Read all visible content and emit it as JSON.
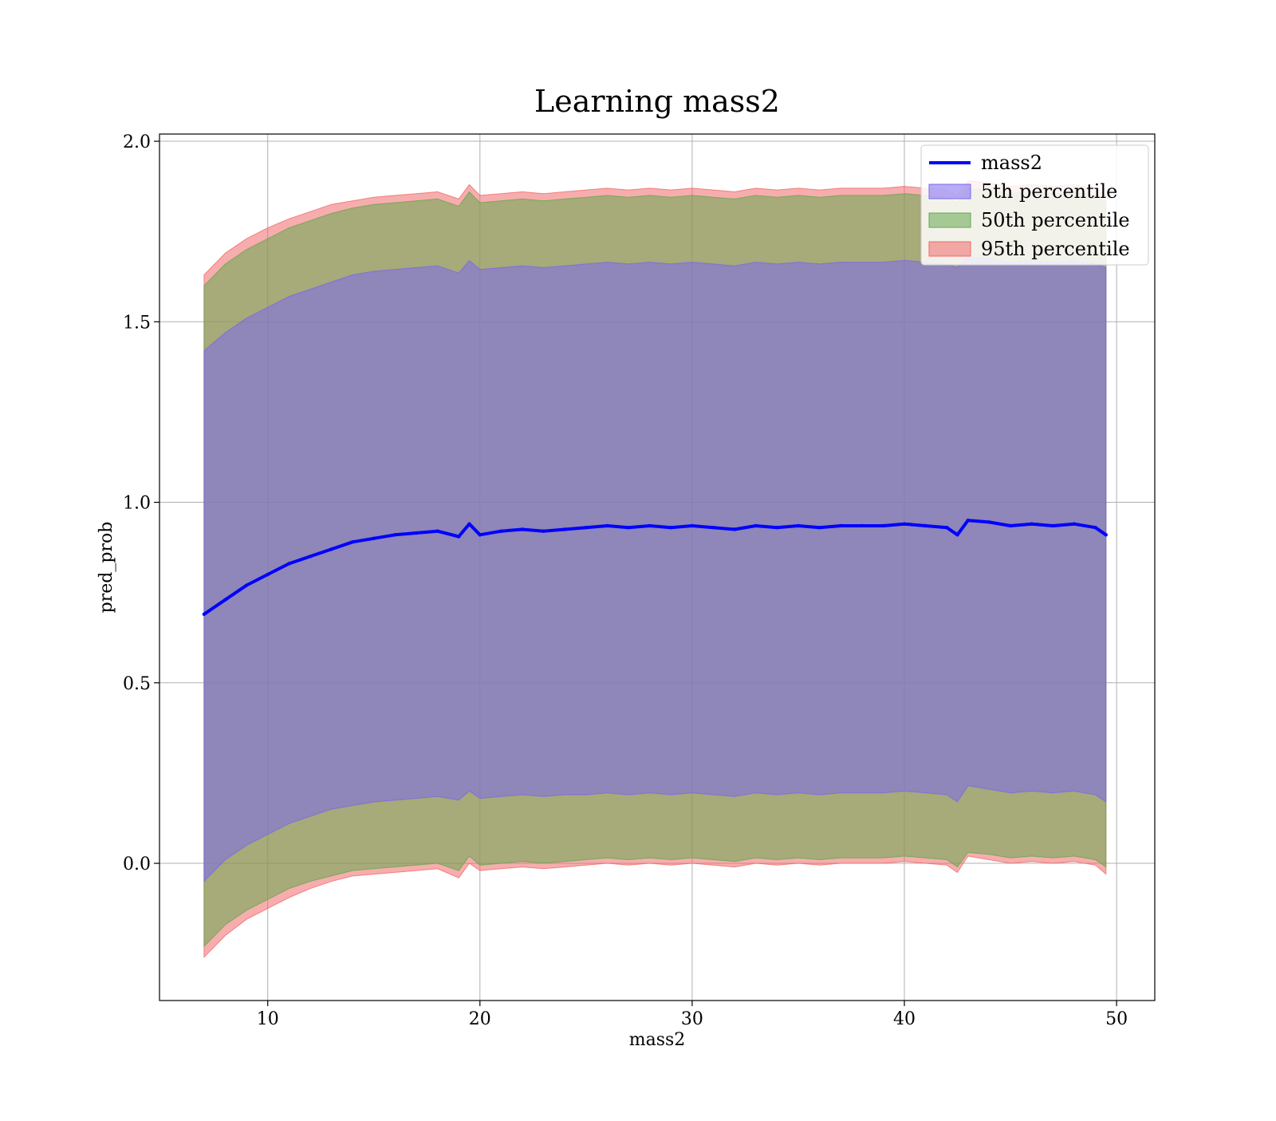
{
  "chart_data": {
    "type": "area",
    "title": "Learning mass2",
    "xlabel": "mass2",
    "ylabel": "pred_prob",
    "xlim": [
      4.9,
      51.8
    ],
    "ylim": [
      -0.38,
      2.02
    ],
    "xticks": [
      10,
      20,
      30,
      40,
      50
    ],
    "yticks": [
      0.0,
      0.5,
      1.0,
      1.5,
      2.0
    ],
    "xtick_labels": [
      "10",
      "20",
      "30",
      "40",
      "50"
    ],
    "ytick_labels": [
      "0.0",
      "0.5",
      "1.0",
      "1.5",
      "2.0"
    ],
    "grid": true,
    "legend_position": "top-right",
    "legend": [
      "mass2",
      "5th percentile",
      "50th percentile",
      "95th percentile"
    ],
    "colors": {
      "line": "#0000ff",
      "p5": "#7b68ee",
      "p50": "#66a84f",
      "p95": "#f06a6a",
      "grid": "#b0b0b0"
    },
    "x": [
      7.0,
      8.0,
      9.0,
      10.0,
      11.0,
      12.0,
      13.0,
      14.0,
      15.0,
      16.0,
      17.0,
      18.0,
      19.0,
      19.5,
      20.0,
      21.0,
      22.0,
      23.0,
      24.0,
      25.0,
      26.0,
      27.0,
      28.0,
      29.0,
      30.0,
      31.0,
      32.0,
      33.0,
      34.0,
      35.0,
      36.0,
      37.0,
      38.0,
      39.0,
      40.0,
      41.0,
      42.0,
      42.5,
      43.0,
      44.0,
      45.0,
      46.0,
      47.0,
      48.0,
      49.0,
      49.5
    ],
    "series": [
      {
        "name": "mass2",
        "kind": "line",
        "values": [
          0.69,
          0.73,
          0.77,
          0.8,
          0.83,
          0.85,
          0.87,
          0.89,
          0.9,
          0.91,
          0.915,
          0.92,
          0.905,
          0.94,
          0.91,
          0.92,
          0.925,
          0.92,
          0.925,
          0.93,
          0.935,
          0.93,
          0.935,
          0.93,
          0.935,
          0.93,
          0.925,
          0.935,
          0.93,
          0.935,
          0.93,
          0.935,
          0.935,
          0.935,
          0.94,
          0.935,
          0.93,
          0.91,
          0.95,
          0.945,
          0.935,
          0.94,
          0.935,
          0.94,
          0.93,
          0.91
        ]
      },
      {
        "name": "5th percentile",
        "kind": "band",
        "lower": [
          -0.05,
          0.01,
          0.05,
          0.08,
          0.11,
          0.13,
          0.15,
          0.16,
          0.17,
          0.175,
          0.18,
          0.185,
          0.175,
          0.2,
          0.18,
          0.185,
          0.19,
          0.185,
          0.19,
          0.19,
          0.195,
          0.19,
          0.195,
          0.19,
          0.195,
          0.19,
          0.185,
          0.195,
          0.19,
          0.195,
          0.19,
          0.195,
          0.195,
          0.195,
          0.2,
          0.195,
          0.19,
          0.17,
          0.215,
          0.205,
          0.195,
          0.2,
          0.195,
          0.2,
          0.19,
          0.17
        ],
        "upper": [
          1.42,
          1.47,
          1.51,
          1.54,
          1.57,
          1.59,
          1.61,
          1.63,
          1.64,
          1.645,
          1.65,
          1.655,
          1.635,
          1.67,
          1.645,
          1.65,
          1.655,
          1.65,
          1.655,
          1.66,
          1.665,
          1.66,
          1.665,
          1.66,
          1.665,
          1.66,
          1.655,
          1.665,
          1.66,
          1.665,
          1.66,
          1.665,
          1.665,
          1.665,
          1.67,
          1.665,
          1.66,
          1.65,
          1.68,
          1.675,
          1.665,
          1.67,
          1.665,
          1.67,
          1.66,
          1.65
        ]
      },
      {
        "name": "50th percentile",
        "kind": "band",
        "lower": [
          -0.23,
          -0.17,
          -0.13,
          -0.1,
          -0.07,
          -0.05,
          -0.035,
          -0.02,
          -0.015,
          -0.01,
          -0.005,
          0.0,
          -0.02,
          0.02,
          -0.005,
          0.0,
          0.005,
          0.0,
          0.005,
          0.01,
          0.015,
          0.01,
          0.015,
          0.01,
          0.015,
          0.01,
          0.005,
          0.015,
          0.01,
          0.015,
          0.01,
          0.015,
          0.015,
          0.015,
          0.02,
          0.015,
          0.01,
          -0.01,
          0.03,
          0.025,
          0.015,
          0.02,
          0.015,
          0.02,
          0.01,
          -0.01
        ],
        "upper": [
          1.6,
          1.66,
          1.7,
          1.73,
          1.76,
          1.78,
          1.8,
          1.815,
          1.825,
          1.83,
          1.835,
          1.84,
          1.82,
          1.86,
          1.83,
          1.835,
          1.84,
          1.835,
          1.84,
          1.845,
          1.85,
          1.845,
          1.85,
          1.845,
          1.85,
          1.845,
          1.84,
          1.85,
          1.845,
          1.85,
          1.845,
          1.85,
          1.85,
          1.85,
          1.855,
          1.85,
          1.845,
          1.83,
          1.87,
          1.865,
          1.855,
          1.86,
          1.855,
          1.86,
          1.85,
          1.83
        ]
      },
      {
        "name": "95th percentile",
        "kind": "band",
        "lower": [
          -0.26,
          -0.2,
          -0.155,
          -0.125,
          -0.095,
          -0.07,
          -0.05,
          -0.035,
          -0.03,
          -0.025,
          -0.02,
          -0.015,
          -0.04,
          0.0,
          -0.02,
          -0.015,
          -0.01,
          -0.015,
          -0.01,
          -0.005,
          0.0,
          -0.005,
          0.0,
          -0.005,
          0.0,
          -0.005,
          -0.01,
          0.0,
          -0.005,
          0.0,
          -0.005,
          0.0,
          0.0,
          0.0,
          0.005,
          0.0,
          -0.005,
          -0.025,
          0.02,
          0.01,
          0.0,
          0.005,
          0.0,
          0.005,
          -0.005,
          -0.03
        ],
        "upper": [
          1.63,
          1.69,
          1.73,
          1.76,
          1.785,
          1.805,
          1.825,
          1.835,
          1.845,
          1.85,
          1.855,
          1.86,
          1.84,
          1.88,
          1.85,
          1.855,
          1.86,
          1.855,
          1.86,
          1.865,
          1.87,
          1.865,
          1.87,
          1.865,
          1.87,
          1.865,
          1.86,
          1.87,
          1.865,
          1.87,
          1.865,
          1.87,
          1.87,
          1.87,
          1.875,
          1.87,
          1.865,
          1.85,
          1.89,
          1.885,
          1.875,
          1.88,
          1.875,
          1.88,
          1.87,
          1.85
        ]
      }
    ]
  }
}
